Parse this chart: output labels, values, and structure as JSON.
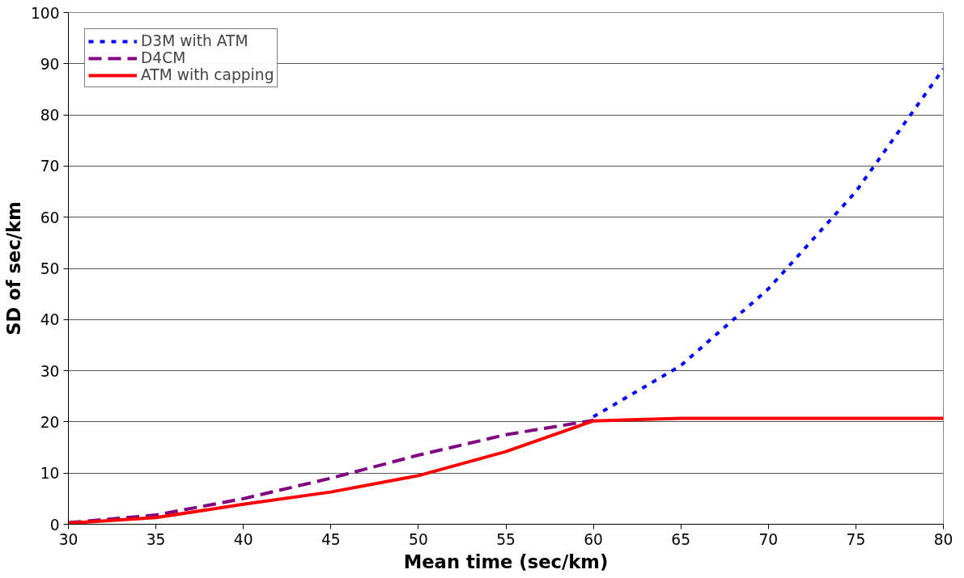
{
  "chart_data": {
    "type": "line",
    "xlabel": "Mean time (sec/km)",
    "ylabel": "SD of sec/km",
    "x": [
      30,
      35,
      40,
      45,
      50,
      55,
      60,
      65,
      70,
      75,
      80
    ],
    "xlim": [
      30,
      80
    ],
    "xticks": [
      30,
      35,
      40,
      45,
      50,
      55,
      60,
      65,
      70,
      75,
      80
    ],
    "ylim": [
      0,
      100
    ],
    "yticks": [
      0,
      10,
      20,
      30,
      40,
      50,
      60,
      70,
      80,
      90,
      100
    ],
    "grid": "y",
    "legend": "top left",
    "marker": "none",
    "series": [
      {
        "name": "D3M with ATM",
        "color": "#0000ff",
        "line_style": "dotted",
        "values": [
          null,
          null,
          null,
          null,
          null,
          null,
          21,
          31,
          46,
          65,
          89
        ]
      },
      {
        "name": "D4CM",
        "color": "#800080",
        "line_style": "dashed",
        "values": [
          0.3,
          1.8,
          5,
          9,
          13.5,
          17.5,
          20.3,
          null,
          null,
          null,
          null
        ]
      },
      {
        "name": "ATM with capping",
        "color": "#ff0000",
        "line_style": "solid",
        "values": [
          0.2,
          1.3,
          3.9,
          6.3,
          9.5,
          14.2,
          20.2,
          20.7,
          20.7,
          20.7,
          20.7
        ]
      }
    ]
  }
}
